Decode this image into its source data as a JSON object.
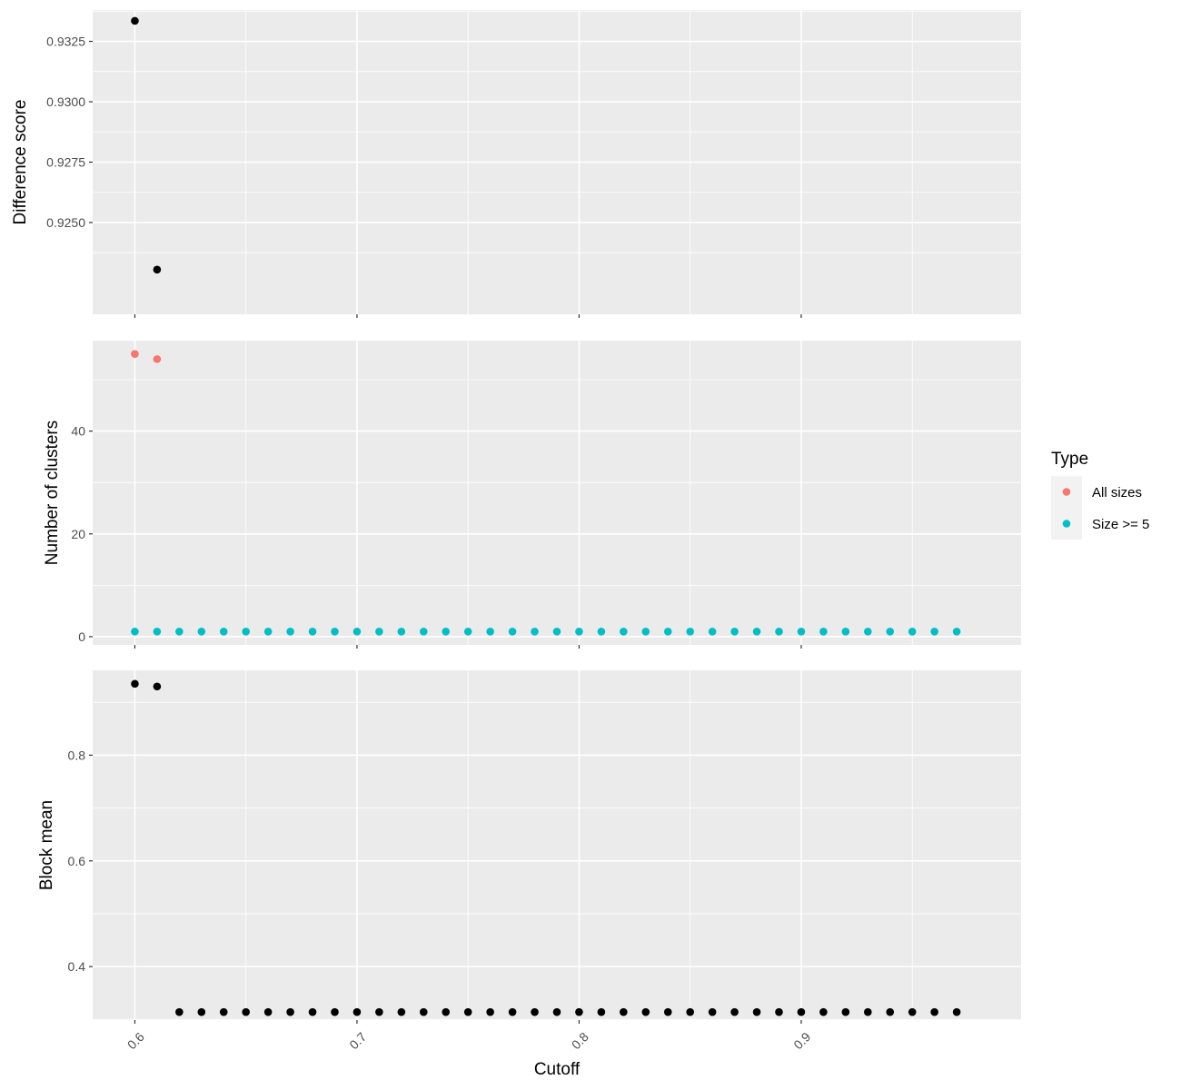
{
  "chart_data": {
    "type": "scatter",
    "xlabel": "Cutoff",
    "x_ticks": [
      "0.6",
      "0.7",
      "0.8",
      "0.9"
    ],
    "xlim": [
      0.581,
      0.999
    ],
    "grid": true,
    "legend": {
      "title": "Type",
      "placement": "right",
      "entries": [
        {
          "label": "All sizes",
          "color": "#F8766D"
        },
        {
          "label": "Size >= 5",
          "color": "#00BFC4"
        }
      ]
    },
    "panels": [
      {
        "ylabel": "Difference score",
        "ylim": [
          0.9212,
          0.9338
        ],
        "y_ticks": [
          0.925,
          0.9275,
          0.93,
          0.9325
        ],
        "y_tick_labels": [
          "0.9250",
          "0.9275",
          "0.9300",
          "0.9325"
        ],
        "series": [
          {
            "color": "#000000",
            "points": [
              [
                0.6,
                0.93335
              ],
              [
                0.61,
                0.92305
              ]
            ]
          }
        ]
      },
      {
        "ylabel": "Number of clusters",
        "ylim": [
          -1.6,
          57.6
        ],
        "y_ticks": [
          0,
          20,
          40
        ],
        "y_tick_labels": [
          "0",
          "20",
          "40"
        ],
        "series": [
          {
            "name": "All sizes",
            "color": "#F8766D",
            "points": [
              [
                0.6,
                55
              ],
              [
                0.61,
                54
              ]
            ]
          },
          {
            "name": "Size >= 5",
            "color": "#00BFC4",
            "x_start": 0.6,
            "x_end": 0.97,
            "x_step": 0.01,
            "y_constant": 1
          }
        ]
      },
      {
        "ylabel": "Block mean",
        "ylim": [
          0.2988,
          0.9605
        ],
        "y_ticks": [
          0.4,
          0.6,
          0.8
        ],
        "y_tick_labels": [
          "0.4",
          "0.6",
          "0.8"
        ],
        "series": [
          {
            "color": "#000000",
            "points": [
              [
                0.6,
                0.935
              ],
              [
                0.61,
                0.93
              ]
            ]
          },
          {
            "color": "#000000",
            "x_start": 0.62,
            "x_end": 0.97,
            "x_step": 0.01,
            "y_constant": 0.314
          }
        ]
      }
    ]
  }
}
